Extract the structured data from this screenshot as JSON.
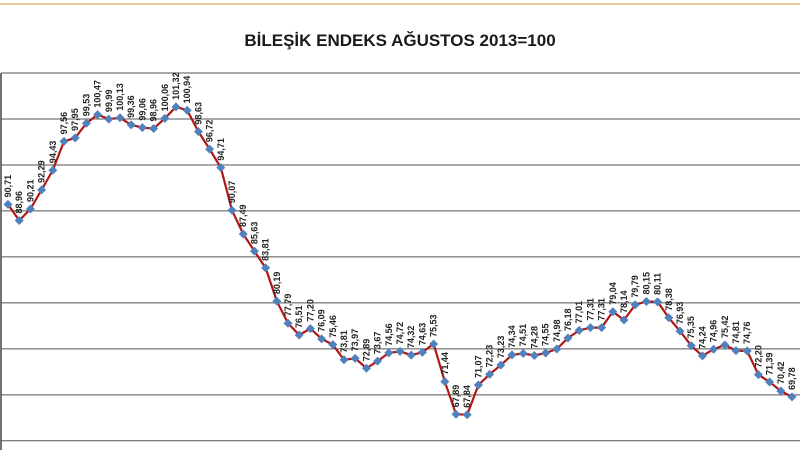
{
  "chart_data": {
    "type": "line",
    "title": "BİLEŞİK ENDEKS AĞUSTOS 2013=100",
    "series": [
      {
        "color": "#b01818",
        "marker_color": "#4f81bd",
        "values": [
          90.71,
          88.96,
          90.21,
          92.29,
          94.43,
          97.56,
          97.95,
          99.53,
          100.47,
          99.99,
          100.13,
          99.36,
          99.06,
          98.96,
          100.06,
          101.32,
          100.94,
          98.63,
          96.72,
          94.71,
          90.07,
          87.49,
          85.63,
          83.81,
          80.19,
          77.79,
          76.51,
          77.2,
          76.09,
          75.46,
          73.81,
          73.97,
          72.89,
          73.67,
          74.56,
          74.72,
          74.32,
          74.63,
          75.53,
          71.44,
          67.89,
          67.84,
          71.07,
          72.23,
          73.23,
          74.34,
          74.51,
          74.28,
          74.55,
          74.98,
          76.18,
          77.01,
          77.31,
          77.31,
          79.04,
          78.14,
          79.79,
          80.15,
          80.11,
          78.38,
          76.93,
          75.35,
          74.24,
          74.96,
          75.42,
          74.81,
          74.76,
          72.2,
          71.39,
          70.42,
          69.78
        ],
        "value_labels": [
          "90,71",
          "88,96",
          "90,21",
          "92,29",
          "94,43",
          "97,56",
          "97,95",
          "99,53",
          "100,47",
          "99,99",
          "100,13",
          "99,36",
          "99,06",
          "98,96",
          "100,06",
          "101,32",
          "100,94",
          "98,63",
          "96,72",
          "94,71",
          "90,07",
          "87,49",
          "85,63",
          "83,81",
          "80,19",
          "77,79",
          "76,51",
          "77,20",
          "76,09",
          "75,46",
          "73,81",
          "73,97",
          "72,89",
          "73,67",
          "74,56",
          "74,72",
          "74,32",
          "74,63",
          "75,53",
          "71,44",
          "67,89",
          "67,84",
          "71,07",
          "72,23",
          "73,23",
          "74,34",
          "74,51",
          "74,28",
          "74,55",
          "74,98",
          "76,18",
          "77,01",
          "77,31",
          "77,31",
          "79,04",
          "78,14",
          "79,79",
          "80,15",
          "80,11",
          "78,38",
          "76,93",
          "75,35",
          "74,24",
          "74,96",
          "75,42",
          "74,81",
          "74,76",
          "72,20",
          "71,39",
          "70,42",
          "69,78"
        ]
      }
    ],
    "ylim": [
      64,
      105
    ],
    "yticks": [
      65,
      70,
      75,
      80,
      85,
      90,
      95,
      100,
      105
    ],
    "grid": true
  }
}
